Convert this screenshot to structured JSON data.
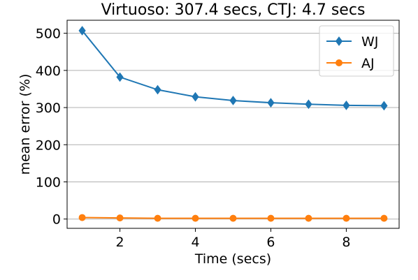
{
  "chart_data": {
    "type": "line",
    "title": "Virtuoso: 307.4 secs, CTJ: 4.7 secs",
    "xlabel": "Time (secs)",
    "ylabel": "mean error (%)",
    "xlim": [
      0.6,
      9.4
    ],
    "ylim": [
      -25,
      535
    ],
    "xticks": [
      2,
      4,
      6,
      8
    ],
    "yticks": [
      0,
      100,
      200,
      300,
      400,
      500
    ],
    "grid": "horizontal",
    "legend": "top-right",
    "x": [
      1,
      2,
      3,
      4,
      5,
      6,
      7,
      8,
      9
    ],
    "series": [
      {
        "name": "WJ",
        "color": "#1f77b4",
        "marker": "diamond",
        "values": [
          507,
          382,
          348,
          329,
          319,
          313,
          309,
          306,
          305
        ]
      },
      {
        "name": "AJ",
        "color": "#ff7f0e",
        "marker": "circle",
        "values": [
          4,
          3,
          2,
          2,
          2,
          2,
          2,
          2,
          2
        ]
      }
    ]
  }
}
